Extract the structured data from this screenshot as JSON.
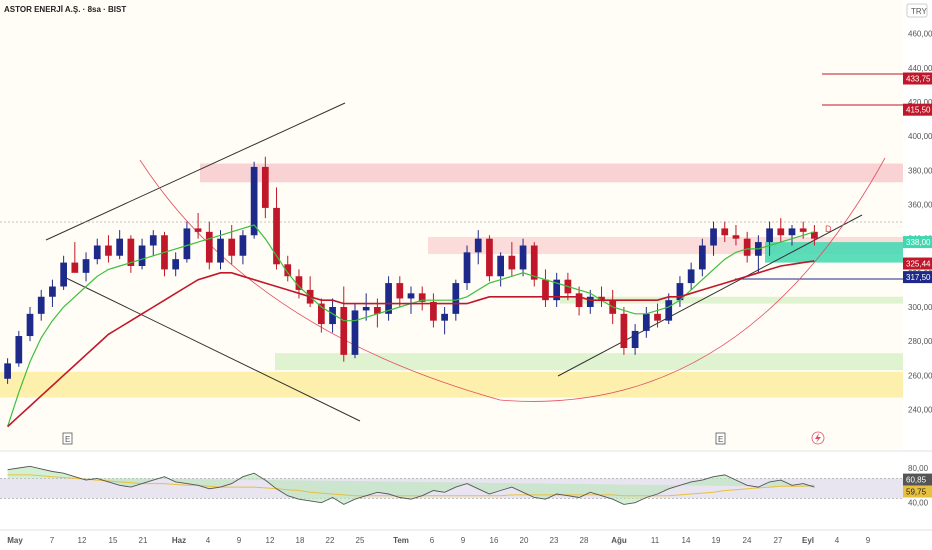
{
  "header": {
    "title": "ASTOR ENERJİ A.Ş. · 8sa · BIST",
    "currency": "TRY"
  },
  "colors": {
    "up": "#1e2a8a",
    "down": "#c0182a",
    "sma_fast": "#3cbf3c",
    "sma_slow": "#c0182a",
    "arc": "#e05060",
    "resistance_zone": "#f8c8cc",
    "support_zone_green": "#d8f0c8",
    "support_zone_yellow": "#fcec9a",
    "mid_zone_teal": "#40d8b0",
    "mid_zone_pink": "#fbd3d3",
    "rsi_line": "#555555",
    "rsi_signal": "#e8c040",
    "rsi_band": "#e8e4f0"
  },
  "chart_data": {
    "type": "candlestick",
    "y_ticks": [
      "460,00",
      "440,00",
      "420,00",
      "400,00",
      "380,00",
      "360,00",
      "340,00",
      "320,00",
      "300,00",
      "280,00",
      "260,00",
      "240,00"
    ],
    "ylim": [
      228,
      468
    ],
    "x_ticks": [
      "May",
      "7",
      "12",
      "15",
      "21",
      "Haz",
      "4",
      "9",
      "12",
      "18",
      "22",
      "25",
      "Tem",
      "6",
      "9",
      "16",
      "20",
      "23",
      "28",
      "Ağu",
      "11",
      "14",
      "19",
      "24",
      "27",
      "Eyl",
      "4",
      "9"
    ],
    "price_labels": [
      {
        "text": "433,75",
        "value": 433.75,
        "color": "#c0182a"
      },
      {
        "text": "415,50",
        "value": 415.5,
        "color": "#c0182a"
      },
      {
        "text": "338,00",
        "value": 338.0,
        "color": "#40d8b0"
      },
      {
        "text": "325,44",
        "value": 325.44,
        "color": "#c0182a"
      },
      {
        "text": "317,50",
        "value": 317.5,
        "color": "#1e2a8a"
      }
    ],
    "zones": [
      {
        "name": "resistance",
        "from": 373,
        "to": 384
      },
      {
        "name": "mid-pink",
        "from": 331,
        "to": 341
      },
      {
        "name": "teal",
        "from": 326,
        "to": 338
      },
      {
        "name": "light-green-upper",
        "from": 302,
        "to": 306
      },
      {
        "name": "green",
        "from": 263,
        "to": 273
      },
      {
        "name": "yellow",
        "from": 247,
        "to": 262
      }
    ],
    "candles": [
      [
        258,
        270,
        255,
        267
      ],
      [
        267,
        286,
        265,
        283
      ],
      [
        283,
        300,
        280,
        296
      ],
      [
        296,
        310,
        292,
        306
      ],
      [
        306,
        316,
        300,
        312
      ],
      [
        312,
        330,
        310,
        326
      ],
      [
        326,
        338,
        322,
        320
      ],
      [
        320,
        332,
        315,
        328
      ],
      [
        328,
        340,
        325,
        336
      ],
      [
        336,
        342,
        326,
        330
      ],
      [
        330,
        345,
        328,
        340
      ],
      [
        340,
        342,
        320,
        324
      ],
      [
        324,
        340,
        322,
        336
      ],
      [
        336,
        345,
        330,
        342
      ],
      [
        342,
        344,
        318,
        322
      ],
      [
        322,
        332,
        318,
        328
      ],
      [
        328,
        350,
        326,
        346
      ],
      [
        346,
        355,
        340,
        344
      ],
      [
        344,
        350,
        322,
        326
      ],
      [
        326,
        345,
        322,
        340
      ],
      [
        340,
        348,
        325,
        330
      ],
      [
        330,
        345,
        325,
        342
      ],
      [
        342,
        385,
        340,
        382
      ],
      [
        382,
        388,
        352,
        358
      ],
      [
        358,
        370,
        322,
        325
      ],
      [
        325,
        330,
        315,
        318
      ],
      [
        318,
        322,
        305,
        310
      ],
      [
        310,
        318,
        300,
        302
      ],
      [
        302,
        305,
        285,
        290
      ],
      [
        290,
        305,
        285,
        300
      ],
      [
        300,
        312,
        268,
        272
      ],
      [
        272,
        302,
        270,
        298
      ],
      [
        298,
        308,
        292,
        300
      ],
      [
        300,
        305,
        288,
        296
      ],
      [
        296,
        318,
        292,
        314
      ],
      [
        314,
        318,
        300,
        305
      ],
      [
        305,
        312,
        296,
        308
      ],
      [
        308,
        312,
        298,
        303
      ],
      [
        303,
        308,
        288,
        292
      ],
      [
        292,
        300,
        284,
        296
      ],
      [
        296,
        316,
        292,
        314
      ],
      [
        314,
        336,
        310,
        332
      ],
      [
        332,
        345,
        325,
        340
      ],
      [
        340,
        342,
        315,
        318
      ],
      [
        318,
        332,
        312,
        330
      ],
      [
        330,
        338,
        318,
        322
      ],
      [
        322,
        340,
        318,
        336
      ],
      [
        336,
        338,
        312,
        316
      ],
      [
        316,
        322,
        300,
        304
      ],
      [
        304,
        320,
        300,
        316
      ],
      [
        316,
        320,
        304,
        308
      ],
      [
        308,
        312,
        295,
        300
      ],
      [
        300,
        310,
        296,
        306
      ],
      [
        306,
        312,
        300,
        304
      ],
      [
        304,
        310,
        290,
        296
      ],
      [
        296,
        300,
        272,
        276
      ],
      [
        276,
        290,
        272,
        286
      ],
      [
        286,
        300,
        282,
        296
      ],
      [
        296,
        302,
        288,
        292
      ],
      [
        292,
        308,
        290,
        304
      ],
      [
        304,
        318,
        300,
        314
      ],
      [
        314,
        326,
        310,
        322
      ],
      [
        322,
        340,
        318,
        336
      ],
      [
        336,
        350,
        330,
        346
      ],
      [
        346,
        350,
        338,
        342
      ],
      [
        342,
        348,
        336,
        340
      ],
      [
        340,
        344,
        326,
        330
      ],
      [
        330,
        342,
        320,
        338
      ],
      [
        338,
        350,
        330,
        346
      ],
      [
        346,
        352,
        338,
        342
      ],
      [
        342,
        348,
        336,
        346
      ],
      [
        346,
        350,
        340,
        344
      ],
      [
        344,
        348,
        336,
        340
      ]
    ],
    "sma_fast": [
      230,
      250,
      268,
      282,
      292,
      300,
      306,
      312,
      318,
      322,
      324,
      326,
      328,
      330,
      332,
      334,
      336,
      338,
      340,
      342,
      344,
      346,
      348,
      340,
      330,
      320,
      312,
      306,
      300,
      296,
      292,
      292,
      294,
      296,
      298,
      300,
      302,
      304,
      304,
      304,
      304,
      306,
      310,
      314,
      316,
      318,
      320,
      318,
      316,
      314,
      312,
      310,
      308,
      304,
      300,
      298,
      296,
      296,
      298,
      300,
      304,
      310,
      316,
      322,
      328,
      332,
      334,
      334,
      336,
      338,
      340,
      342,
      344
    ],
    "sma_slow": [
      230,
      236,
      242,
      248,
      254,
      260,
      266,
      272,
      278,
      284,
      288,
      292,
      296,
      300,
      304,
      308,
      312,
      316,
      318,
      320,
      320,
      318,
      316,
      314,
      312,
      310,
      308,
      306,
      304,
      304,
      302,
      302,
      302,
      302,
      302,
      302,
      302,
      302,
      302,
      302,
      302,
      302,
      304,
      306,
      306,
      306,
      306,
      306,
      306,
      306,
      306,
      306,
      304,
      304,
      304,
      304,
      304,
      304,
      304,
      306,
      306,
      308,
      310,
      312,
      314,
      316,
      318,
      320,
      322,
      324,
      325,
      326,
      327
    ],
    "rsi": {
      "ylim": [
        20,
        95
      ],
      "ticks": [
        "80,00",
        "40,00"
      ],
      "labels": [
        {
          "text": "60,85",
          "value": 60.85,
          "color": "#555555"
        },
        {
          "text": "59,75",
          "value": 59.75,
          "color": "#e8c040"
        }
      ],
      "band": [
        45,
        68
      ],
      "values": [
        78,
        80,
        82,
        79,
        76,
        74,
        70,
        66,
        68,
        64,
        60,
        58,
        62,
        66,
        70,
        64,
        62,
        60,
        56,
        58,
        62,
        70,
        74,
        66,
        56,
        48,
        44,
        42,
        40,
        46,
        38,
        44,
        48,
        52,
        50,
        46,
        44,
        48,
        54,
        52,
        58,
        62,
        56,
        50,
        54,
        58,
        52,
        46,
        44,
        50,
        48,
        46,
        52,
        48,
        44,
        38,
        40,
        46,
        50,
        56,
        60,
        64,
        66,
        70,
        72,
        66,
        60,
        58,
        64,
        66,
        60,
        62,
        58
      ],
      "signal": [
        72,
        72,
        72,
        71,
        70,
        69,
        68,
        67,
        66,
        65,
        64,
        63,
        62,
        62,
        62,
        61,
        60,
        60,
        59,
        58,
        58,
        58,
        58,
        57,
        56,
        55,
        54,
        52,
        51,
        50,
        49,
        48,
        48,
        48,
        48,
        48,
        48,
        48,
        48,
        48,
        48,
        48,
        48,
        48,
        48,
        49,
        49,
        49,
        49,
        49,
        49,
        49,
        49,
        49,
        49,
        48,
        48,
        48,
        48,
        48,
        49,
        50,
        51,
        52,
        54,
        55,
        56,
        57,
        58,
        59,
        59,
        59,
        60
      ]
    },
    "event_markers": [
      "E",
      "E"
    ]
  },
  "annotations": {
    "pattern_label": "D",
    "lightning_icon": "lightning-icon"
  }
}
